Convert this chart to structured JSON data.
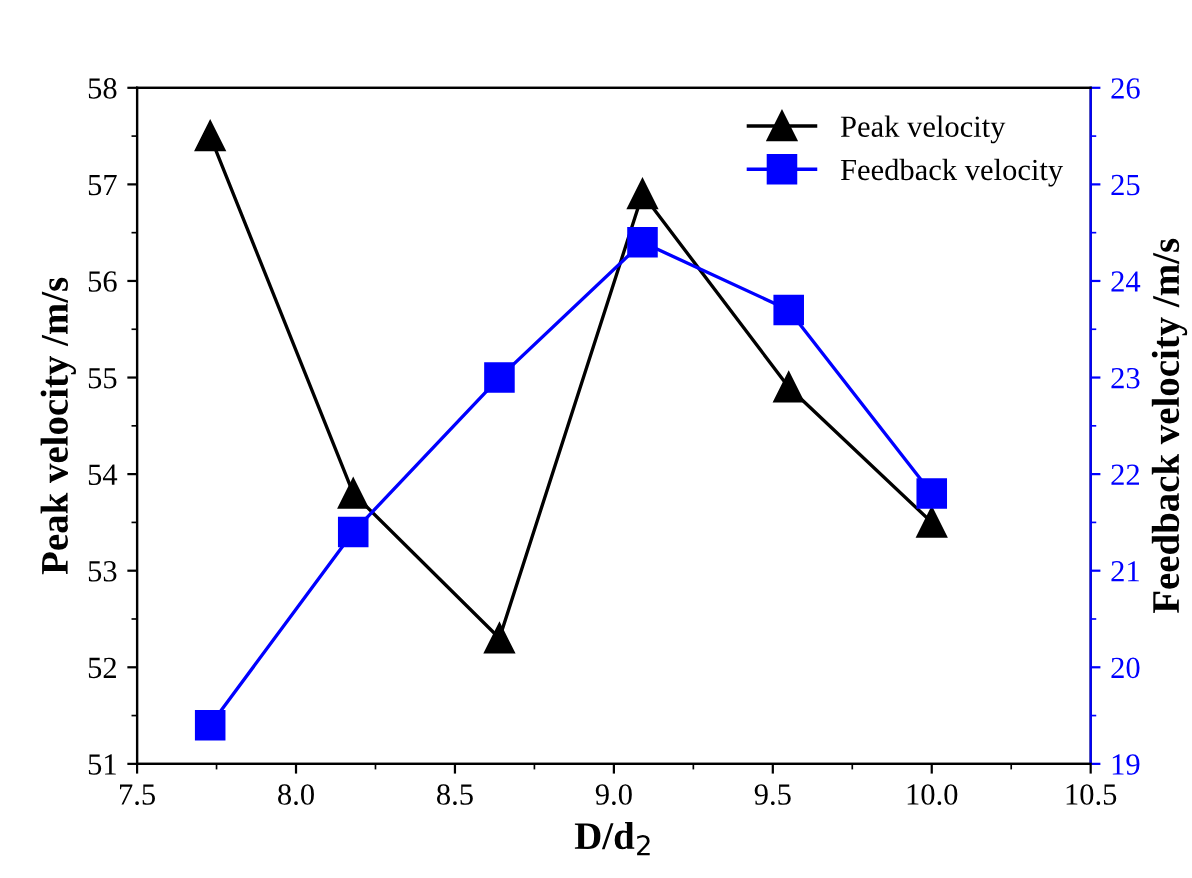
{
  "chart_data": {
    "type": "line",
    "xlabel": "D/d$_{2}$",
    "ylabel": "Peak velocity /m/s",
    "y2label": "Feedback velocity /m/s",
    "x": [
      7.73,
      8.18,
      8.64,
      9.09,
      9.55,
      10.0
    ],
    "series": [
      {
        "name": "Peak velocity",
        "color": "#000000",
        "marker": "triangle",
        "values": [
          57.5,
          53.8,
          52.3,
          56.9,
          54.9,
          53.5
        ]
      },
      {
        "name": "Feedback velocity",
        "color": "#0000ff",
        "marker": "square",
        "axis": "y2",
        "values": [
          19.4,
          21.4,
          23.0,
          24.4,
          23.7,
          21.8
        ]
      }
    ],
    "xlim": [
      7.5,
      10.5
    ],
    "xticks": [
      {
        "value": 7.5,
        "label": "7.5"
      },
      {
        "value": 8.0,
        "label": "8.0"
      },
      {
        "value": 8.5,
        "label": "8.5"
      },
      {
        "value": 9.0,
        "label": "9.0"
      },
      {
        "value": 9.5,
        "label": "9.5"
      },
      {
        "value": 10.0,
        "label": "10.0"
      },
      {
        "value": 10.5,
        "label": "10.5"
      }
    ],
    "ylim": [
      51,
      58
    ],
    "yticks": [
      51,
      52,
      53,
      54,
      55,
      56,
      57,
      58
    ],
    "y2lim": [
      19,
      26
    ],
    "y2ticks": [
      19,
      20,
      21,
      22,
      23,
      24,
      25,
      26
    ],
    "legend": "top right",
    "grid": false,
    "line_style": "solid"
  }
}
